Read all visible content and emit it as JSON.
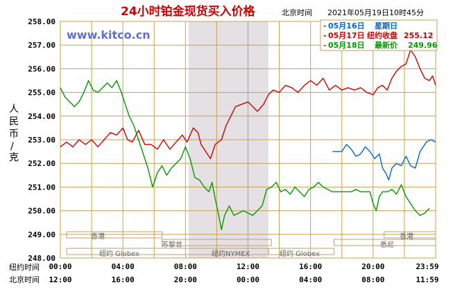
{
  "title": "24小时铂金现货买入价格",
  "beijing_label": "北京时间",
  "timestamp": "2021年05月19日10时45分",
  "watermark": "www.kitco.cn",
  "ylabel": "人民币/克",
  "colors": {
    "red": "#cc0000",
    "green": "#009900",
    "blue": "#0066cc",
    "grid": "#c8a050",
    "shade": "#e4e0e4"
  },
  "legend": {
    "blue": {
      "date": "05月16日",
      "text": "星期日"
    },
    "red": {
      "date": "05月17日",
      "text": "纽约收盘",
      "value": "255.12"
    },
    "green": {
      "date": "05月18日",
      "text": "最新价",
      "value": "249.96"
    }
  },
  "sessions": {
    "hongkong": "香港",
    "zurich": "苏黎世",
    "ny_globex": "纽约 Globex",
    "ny_nymex": "纽约NYMEX",
    "sydney": "悉尼"
  },
  "x_row_labels": {
    "ny": "纽约时间",
    "bj": "北京时间"
  },
  "x_ticks_ny": [
    "00:00",
    "04:00",
    "08:00",
    "12:00",
    "16:00",
    "20:00",
    "23:59"
  ],
  "x_ticks_bj": [
    "12:00",
    "16:00",
    "20:00",
    "00:00",
    "04:00",
    "08:00",
    "11:59"
  ],
  "chart_data": {
    "type": "line",
    "ylim": [
      248.0,
      258.0
    ],
    "yticks": [
      "258.00",
      "257.00",
      "256.00",
      "255.00",
      "254.00",
      "253.00",
      "252.00",
      "251.00",
      "250.00",
      "249.00",
      "248.00"
    ],
    "x_unit": "hours (New York time)",
    "xlim": [
      0,
      24
    ],
    "shaded_hours": [
      8.2,
      13.3
    ],
    "series": [
      {
        "name": "05月17日",
        "color": "#cc0000",
        "points": [
          [
            0,
            252.7
          ],
          [
            0.4,
            252.9
          ],
          [
            0.8,
            252.7
          ],
          [
            1.2,
            253.0
          ],
          [
            1.6,
            252.8
          ],
          [
            2.0,
            253.0
          ],
          [
            2.4,
            252.7
          ],
          [
            2.8,
            253.0
          ],
          [
            3.2,
            253.3
          ],
          [
            3.6,
            253.2
          ],
          [
            4.0,
            253.5
          ],
          [
            4.3,
            253.0
          ],
          [
            4.6,
            252.9
          ],
          [
            5.0,
            253.4
          ],
          [
            5.4,
            252.8
          ],
          [
            5.8,
            252.8
          ],
          [
            6.2,
            252.6
          ],
          [
            6.6,
            253.0
          ],
          [
            7.0,
            252.6
          ],
          [
            7.4,
            252.9
          ],
          [
            7.8,
            253.2
          ],
          [
            8.1,
            252.9
          ],
          [
            8.5,
            253.5
          ],
          [
            8.8,
            253.3
          ],
          [
            9.0,
            252.8
          ],
          [
            9.3,
            252.5
          ],
          [
            9.6,
            252.2
          ],
          [
            9.9,
            252.8
          ],
          [
            10.3,
            253.0
          ],
          [
            10.6,
            253.6
          ],
          [
            10.9,
            254.0
          ],
          [
            11.2,
            254.4
          ],
          [
            11.6,
            254.5
          ],
          [
            12.0,
            254.6
          ],
          [
            12.3,
            254.4
          ],
          [
            12.6,
            254.2
          ],
          [
            13.0,
            254.5
          ],
          [
            13.3,
            254.9
          ],
          [
            13.6,
            255.1
          ],
          [
            14.0,
            255.0
          ],
          [
            14.4,
            255.3
          ],
          [
            14.8,
            255.2
          ],
          [
            15.2,
            255.0
          ],
          [
            15.6,
            255.3
          ],
          [
            16.0,
            255.5
          ],
          [
            16.4,
            255.3
          ],
          [
            16.8,
            255.6
          ],
          [
            17.2,
            255.1
          ],
          [
            17.6,
            255.3
          ],
          [
            18.0,
            255.1
          ],
          [
            18.4,
            255.2
          ],
          [
            18.8,
            255.1
          ],
          [
            19.2,
            255.2
          ],
          [
            19.6,
            255.0
          ],
          [
            20.0,
            254.9
          ],
          [
            20.3,
            255.2
          ],
          [
            20.6,
            255.3
          ],
          [
            20.9,
            255.1
          ],
          [
            21.2,
            255.6
          ],
          [
            21.5,
            255.9
          ],
          [
            21.8,
            256.1
          ],
          [
            22.1,
            256.2
          ],
          [
            22.4,
            256.8
          ],
          [
            22.7,
            256.5
          ],
          [
            23.0,
            256.0
          ],
          [
            23.3,
            255.6
          ],
          [
            23.6,
            255.5
          ],
          [
            23.8,
            255.7
          ],
          [
            24.0,
            255.3
          ]
        ]
      },
      {
        "name": "05月18日",
        "color": "#009900",
        "points": [
          [
            0,
            255.2
          ],
          [
            0.3,
            254.8
          ],
          [
            0.6,
            254.6
          ],
          [
            0.9,
            254.4
          ],
          [
            1.2,
            254.6
          ],
          [
            1.5,
            255.0
          ],
          [
            1.8,
            255.5
          ],
          [
            2.1,
            255.1
          ],
          [
            2.4,
            255.0
          ],
          [
            2.7,
            255.2
          ],
          [
            3.0,
            255.4
          ],
          [
            3.3,
            255.2
          ],
          [
            3.6,
            255.5
          ],
          [
            3.9,
            255.0
          ],
          [
            4.1,
            254.6
          ],
          [
            4.4,
            254.0
          ],
          [
            4.7,
            253.6
          ],
          [
            5.0,
            253.0
          ],
          [
            5.3,
            252.4
          ],
          [
            5.6,
            251.8
          ],
          [
            5.9,
            251.0
          ],
          [
            6.2,
            251.6
          ],
          [
            6.5,
            251.9
          ],
          [
            6.8,
            251.5
          ],
          [
            7.1,
            251.8
          ],
          [
            7.4,
            252.0
          ],
          [
            7.7,
            252.2
          ],
          [
            8.0,
            252.7
          ],
          [
            8.3,
            252.2
          ],
          [
            8.6,
            251.4
          ],
          [
            8.9,
            251.3
          ],
          [
            9.2,
            251.0
          ],
          [
            9.5,
            250.8
          ],
          [
            9.7,
            251.2
          ],
          [
            9.9,
            250.5
          ],
          [
            10.1,
            249.9
          ],
          [
            10.3,
            249.2
          ],
          [
            10.5,
            249.8
          ],
          [
            10.8,
            250.2
          ],
          [
            11.1,
            249.8
          ],
          [
            11.4,
            249.9
          ],
          [
            11.7,
            250.0
          ],
          [
            12.0,
            249.9
          ],
          [
            12.3,
            249.8
          ],
          [
            12.6,
            250.0
          ],
          [
            12.9,
            250.2
          ],
          [
            13.2,
            250.9
          ],
          [
            13.5,
            251.0
          ],
          [
            13.8,
            251.2
          ],
          [
            14.1,
            250.8
          ],
          [
            14.4,
            250.9
          ],
          [
            14.7,
            250.7
          ],
          [
            15.0,
            251.0
          ],
          [
            15.3,
            250.8
          ],
          [
            15.6,
            250.6
          ],
          [
            15.9,
            250.9
          ],
          [
            16.2,
            251.0
          ],
          [
            16.5,
            251.2
          ],
          [
            16.8,
            251.0
          ],
          [
            17.1,
            250.9
          ],
          [
            17.4,
            250.8
          ],
          [
            17.7,
            250.8
          ],
          [
            18.0,
            250.8
          ],
          [
            18.3,
            250.8
          ],
          [
            18.6,
            250.8
          ],
          [
            18.9,
            250.9
          ],
          [
            19.2,
            250.8
          ],
          [
            19.5,
            250.8
          ],
          [
            19.8,
            250.8
          ],
          [
            20.0,
            250.3
          ],
          [
            20.2,
            250.0
          ],
          [
            20.4,
            250.6
          ],
          [
            20.6,
            250.8
          ],
          [
            20.9,
            250.8
          ],
          [
            21.2,
            250.9
          ],
          [
            21.5,
            250.7
          ],
          [
            21.8,
            251.1
          ],
          [
            22.1,
            250.6
          ],
          [
            22.4,
            250.3
          ],
          [
            22.7,
            250.0
          ],
          [
            23.0,
            249.8
          ],
          [
            23.3,
            249.9
          ],
          [
            23.6,
            250.1
          ]
        ]
      },
      {
        "name": "05月16日",
        "color": "#0066cc",
        "points": [
          [
            17.4,
            252.5
          ],
          [
            18.0,
            252.5
          ],
          [
            18.3,
            252.8
          ],
          [
            18.6,
            252.6
          ],
          [
            18.9,
            252.3
          ],
          [
            19.2,
            252.4
          ],
          [
            19.5,
            252.7
          ],
          [
            19.8,
            252.5
          ],
          [
            20.1,
            252.2
          ],
          [
            20.4,
            252.4
          ],
          [
            20.6,
            251.8
          ],
          [
            20.8,
            251.6
          ],
          [
            21.0,
            251.3
          ],
          [
            21.2,
            251.8
          ],
          [
            21.5,
            252.0
          ],
          [
            21.8,
            251.9
          ],
          [
            22.1,
            252.3
          ],
          [
            22.4,
            251.9
          ],
          [
            22.7,
            251.8
          ],
          [
            23.0,
            252.5
          ],
          [
            23.2,
            252.7
          ],
          [
            23.4,
            252.9
          ],
          [
            23.7,
            253.0
          ],
          [
            24.0,
            252.9
          ]
        ]
      }
    ]
  }
}
